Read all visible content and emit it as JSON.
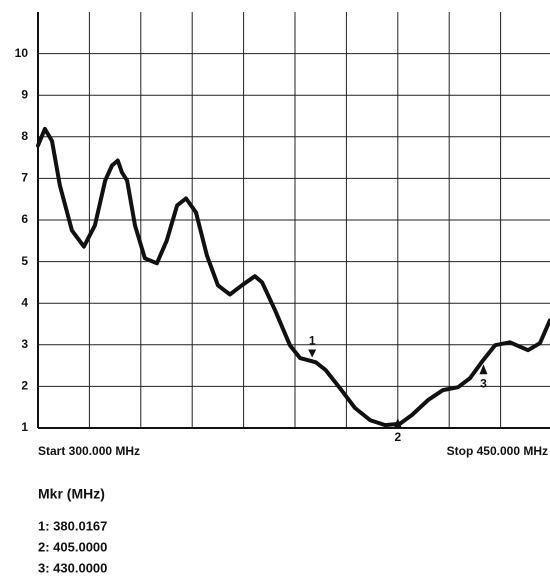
{
  "chart_data": {
    "type": "line",
    "start_label": "Start 300.000 MHz",
    "stop_label": "Stop 450.000 MHz",
    "marker_heading": "Mkr (MHz)",
    "xlim": [
      300,
      450
    ],
    "xticks": [
      300,
      315,
      330,
      345,
      360,
      375,
      390,
      405,
      420,
      435,
      450
    ],
    "ylim": [
      1,
      11
    ],
    "yticks": [
      1,
      2,
      3,
      4,
      5,
      6,
      7,
      8,
      9,
      10
    ],
    "grid": true,
    "color": "#111111",
    "x": [
      300,
      302.0,
      304.1,
      306.4,
      309.9,
      313.4,
      316.6,
      319.6,
      321.6,
      323.3,
      324.5,
      326.0,
      328.3,
      331.2,
      334.7,
      337.6,
      340.6,
      343.2,
      346.1,
      349.3,
      352.5,
      356.0,
      359.5,
      363.3,
      365.4,
      369.2,
      373.5,
      376.5,
      381.1,
      384.0,
      388.1,
      392.5,
      396.9,
      401.3,
      405.6,
      409.1,
      413.8,
      418.2,
      422.6,
      426.1,
      429.9,
      433.4,
      437.7,
      443.0,
      446.5,
      449.4
    ],
    "values": [
      7.79,
      8.19,
      7.9,
      6.83,
      5.75,
      5.36,
      5.87,
      6.95,
      7.31,
      7.43,
      7.14,
      6.95,
      5.87,
      5.08,
      4.96,
      5.51,
      6.35,
      6.52,
      6.18,
      5.15,
      4.43,
      4.21,
      4.43,
      4.65,
      4.5,
      3.83,
      2.99,
      2.68,
      2.58,
      2.39,
      1.96,
      1.48,
      1.19,
      1.07,
      1.1,
      1.31,
      1.67,
      1.91,
      1.98,
      2.2,
      2.63,
      2.99,
      3.06,
      2.87,
      3.04,
      3.59
    ],
    "markers": [
      {
        "label": "1",
        "x": 380.0167,
        "value": 2.6,
        "readout": "1: 380.0167"
      },
      {
        "label": "2",
        "x": 405.0,
        "value": 1.05,
        "readout": "2: 405.0000"
      },
      {
        "label": "3",
        "x": 430.0,
        "value": 2.63,
        "readout": "3: 430.0000"
      }
    ]
  }
}
